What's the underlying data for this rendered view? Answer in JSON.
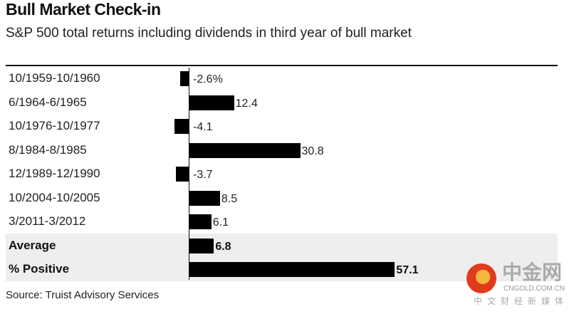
{
  "chart_data": {
    "type": "bar",
    "orientation": "horizontal",
    "title": "Bull Market Check-in",
    "subtitle": "S&P 500 total returns including dividends in third year of bull market",
    "categories": [
      "10/1959-10/1960",
      "6/1964-6/1965",
      "10/1976-10/1977",
      "8/1984-8/1985",
      "12/1989-12/1990",
      "10/2004-10/2005",
      "3/2011-3/2012",
      "Average",
      "% Positive"
    ],
    "values": [
      -2.6,
      12.4,
      -4.1,
      30.8,
      -3.7,
      8.5,
      6.1,
      6.8,
      57.1
    ],
    "data_labels": [
      "-2.6%",
      "12.4",
      "-4.1",
      "30.8",
      "-3.7",
      "8.5",
      "6.1",
      "6.8",
      "57.1"
    ],
    "highlighted_rows": [
      "Average",
      "% Positive"
    ],
    "bar_color": "#000000",
    "highlight_background": "#eeeeee",
    "grid": false,
    "source": "Source: Truist Advisory Services"
  },
  "watermark": {
    "name": "中金网",
    "domain": "CNGOLD.COM.CN",
    "tagline": "中文财经新媒体"
  }
}
